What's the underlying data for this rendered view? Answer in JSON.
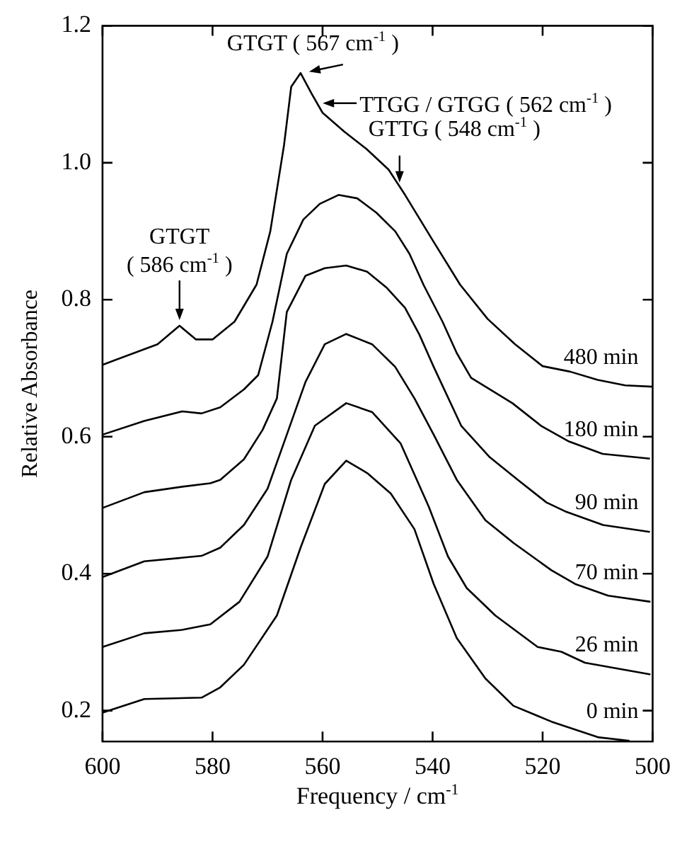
{
  "chart_data": {
    "type": "line",
    "xlabel": "Frequency / cm$^{-1}$",
    "ylabel": "Relative Absorbance",
    "xlim": [
      600,
      500
    ],
    "xticks": [
      600,
      580,
      560,
      540,
      520,
      500
    ],
    "ylim": [
      0.155,
      1.2
    ],
    "yticks": [
      0.2,
      0.4,
      0.6,
      0.8,
      {
        "value": 1.0,
        "label": "1.0"
      },
      1.2
    ],
    "grid": false,
    "legend": "right",
    "marker": "none",
    "line_style": "solid",
    "series": [
      {
        "name": "480 min",
        "color": "#000000",
        "x": [
          600,
          590,
          586,
          583,
          580,
          576,
          572,
          569.5,
          567,
          565.7,
          564,
          562,
          560,
          556,
          552,
          548,
          545,
          540,
          535,
          530,
          525,
          520,
          515,
          510,
          505,
          500
        ],
        "values": [
          0.705,
          0.735,
          0.762,
          0.742,
          0.742,
          0.768,
          0.822,
          0.9,
          1.026,
          1.111,
          1.131,
          1.101,
          1.073,
          1.045,
          1.02,
          0.99,
          0.953,
          0.887,
          0.822,
          0.772,
          0.735,
          0.703,
          0.695,
          0.683,
          0.675,
          0.673
        ]
      },
      {
        "name": "180 min",
        "color": "#000000",
        "x": [
          600,
          592.4,
          585.5,
          582,
          578.6,
          574.3,
          571.7,
          569.1,
          566.5,
          563.5,
          560.5,
          557.1,
          553.7,
          550.2,
          546.8,
          544.2,
          541.6,
          538.2,
          535.6,
          533,
          525.5,
          520.3,
          515.2,
          509.1,
          500.5
        ],
        "values": [
          0.603,
          0.623,
          0.637,
          0.634,
          0.643,
          0.669,
          0.69,
          0.768,
          0.867,
          0.917,
          0.94,
          0.953,
          0.948,
          0.927,
          0.9,
          0.867,
          0.821,
          0.768,
          0.722,
          0.686,
          0.649,
          0.616,
          0.593,
          0.575,
          0.568
        ]
      },
      {
        "name": "90 min",
        "color": "#000000",
        "x": [
          600,
          592.4,
          585.5,
          580.4,
          578.6,
          574.3,
          570.9,
          568.3,
          566.5,
          563.1,
          559.6,
          555.7,
          551.9,
          548.4,
          545,
          542.4,
          539.8,
          534.8,
          529.6,
          524.5,
          519.3,
          515.9,
          509,
          500.5
        ],
        "values": [
          0.496,
          0.519,
          0.527,
          0.532,
          0.537,
          0.567,
          0.61,
          0.656,
          0.782,
          0.835,
          0.846,
          0.85,
          0.841,
          0.818,
          0.788,
          0.749,
          0.702,
          0.616,
          0.57,
          0.537,
          0.504,
          0.491,
          0.471,
          0.461
        ]
      },
      {
        "name": "70 min",
        "color": "#000000",
        "x": [
          600,
          592.4,
          582,
          578.6,
          574.3,
          570,
          566.5,
          563.1,
          559.6,
          555.7,
          551,
          546.8,
          543.3,
          539.8,
          535.6,
          530.4,
          525.3,
          518.4,
          514.1,
          508.1,
          500.4
        ],
        "values": [
          0.395,
          0.418,
          0.426,
          0.438,
          0.471,
          0.524,
          0.603,
          0.68,
          0.735,
          0.75,
          0.735,
          0.702,
          0.656,
          0.603,
          0.537,
          0.478,
          0.445,
          0.405,
          0.385,
          0.368,
          0.359
        ]
      },
      {
        "name": "26 min",
        "color": "#000000",
        "x": [
          600,
          592.4,
          585.5,
          580.4,
          575.1,
          570,
          565.7,
          561.4,
          555.7,
          551,
          545.8,
          540.7,
          537.2,
          533.8,
          528.6,
          520.9,
          516.6,
          512.3,
          500.4
        ],
        "values": [
          0.293,
          0.313,
          0.318,
          0.326,
          0.359,
          0.425,
          0.537,
          0.616,
          0.649,
          0.636,
          0.59,
          0.498,
          0.425,
          0.379,
          0.339,
          0.293,
          0.286,
          0.27,
          0.253
        ]
      },
      {
        "name": "0 min",
        "color": "#000000",
        "x": [
          600,
          592.4,
          582,
          578.6,
          574.3,
          568.3,
          564,
          559.6,
          555.7,
          551.9,
          547.6,
          543.3,
          539.8,
          535.6,
          530.4,
          525.3,
          518.4,
          509.8,
          504.2
        ],
        "values": [
          0.197,
          0.217,
          0.219,
          0.234,
          0.267,
          0.339,
          0.438,
          0.531,
          0.565,
          0.547,
          0.517,
          0.465,
          0.385,
          0.306,
          0.247,
          0.207,
          0.184,
          0.161,
          0.156
        ]
      }
    ],
    "annotations": [
      {
        "text": "GTGT ( 586 cm$^{-1}$ )",
        "x": 586,
        "y": 0.762
      },
      {
        "text": "GTGT ( 567 cm$^{-1}$ )",
        "x": 564,
        "y": 1.131
      },
      {
        "text": "TTGG / GTGG ( 562 cm$^{-1}$ )",
        "x": 561,
        "y": 1.087
      },
      {
        "text": "GTTG ( 548 cm$^{-1}$ )",
        "x": 546,
        "y": 0.965
      }
    ]
  }
}
